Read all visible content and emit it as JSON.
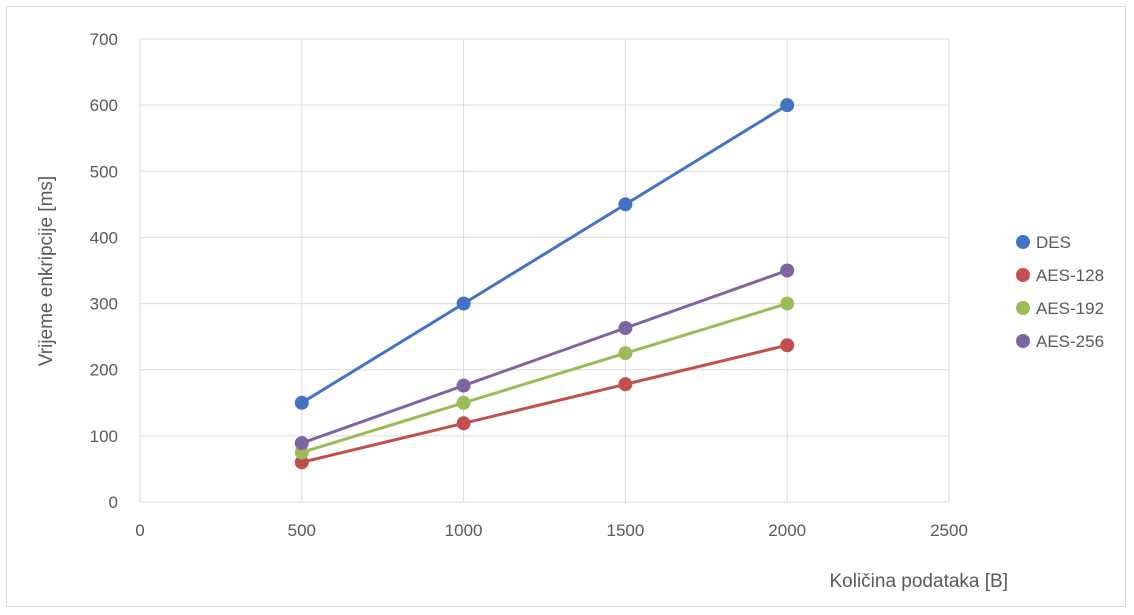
{
  "chart_data": {
    "type": "scatter",
    "title": "",
    "xlabel": "Količina podataka [B]",
    "ylabel": "Vrijeme enkripcije [ms]",
    "xlim": [
      0,
      2500
    ],
    "ylim": [
      0,
      700
    ],
    "xticks": [
      0,
      500,
      1000,
      1500,
      2000,
      2500
    ],
    "yticks": [
      0,
      100,
      200,
      300,
      400,
      500,
      600,
      700
    ],
    "grid": true,
    "legend_position": "right",
    "x": [
      500,
      1000,
      1500,
      2000
    ],
    "series": [
      {
        "name": "DES",
        "color": "#4472c4",
        "values": [
          150,
          300,
          450,
          600
        ]
      },
      {
        "name": "AES-128",
        "color": "#c0504d",
        "values": [
          60,
          119,
          178,
          237
        ]
      },
      {
        "name": "AES-192",
        "color": "#9bbb59",
        "values": [
          75,
          150,
          225,
          300
        ]
      },
      {
        "name": "AES-256",
        "color": "#8064a2",
        "values": [
          89,
          176,
          263,
          350
        ]
      }
    ]
  }
}
